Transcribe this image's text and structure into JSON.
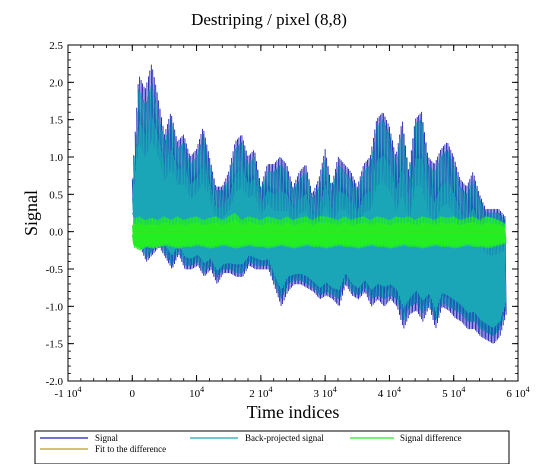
{
  "chart_data": {
    "type": "line",
    "title": "Destriping / pixel (8,8)",
    "xlabel": "Time indices",
    "ylabel": "Signal",
    "xlim": [
      -10000,
      60000
    ],
    "ylim": [
      -2.0,
      2.5
    ],
    "x_ticks": [
      {
        "value": -10000,
        "label": "-1 10",
        "exp": "4"
      },
      {
        "value": 0,
        "label": "0",
        "exp": ""
      },
      {
        "value": 10000,
        "label": "10",
        "exp": "4"
      },
      {
        "value": 20000,
        "label": "2 10",
        "exp": "4"
      },
      {
        "value": 30000,
        "label": "3 10",
        "exp": "4"
      },
      {
        "value": 40000,
        "label": "4 10",
        "exp": "4"
      },
      {
        "value": 50000,
        "label": "5 10",
        "exp": "4"
      },
      {
        "value": 60000,
        "label": "6 10",
        "exp": "4"
      }
    ],
    "y_ticks": [
      {
        "value": 2.5,
        "label": "2.5"
      },
      {
        "value": 2.0,
        "label": "2.0"
      },
      {
        "value": 1.5,
        "label": "1.5"
      },
      {
        "value": 1.0,
        "label": "1.0"
      },
      {
        "value": 0.5,
        "label": "0.5"
      },
      {
        "value": 0.0,
        "label": "0.0"
      },
      {
        "value": -0.5,
        "label": "-0.5"
      },
      {
        "value": -1.0,
        "label": "-1.0"
      },
      {
        "value": -1.5,
        "label": "-1.5"
      },
      {
        "value": -2.0,
        "label": "-2.0"
      }
    ],
    "grid": false,
    "legend_position": "bottom",
    "series": [
      {
        "name": "Signal",
        "color": "#1c1cb4",
        "x": [
          0,
          1000,
          2000,
          3000,
          4000,
          5000,
          6000,
          7000,
          8000,
          9000,
          10000,
          11000,
          12000,
          13000,
          14000,
          15000,
          16000,
          17000,
          18000,
          19000,
          20000,
          21000,
          22000,
          23000,
          24000,
          25000,
          26000,
          27000,
          28000,
          29000,
          30000,
          31000,
          32000,
          33000,
          34000,
          35000,
          36000,
          37000,
          38000,
          39000,
          40000,
          41000,
          42000,
          43000,
          44000,
          45000,
          46000,
          47000,
          48000,
          49000,
          50000,
          51000,
          52000,
          53000,
          54000,
          55000,
          56000,
          57000,
          58000
        ],
        "y": [
          0.7,
          2.1,
          1.9,
          2.25,
          1.8,
          1.3,
          1.6,
          1.2,
          1.3,
          1.0,
          1.1,
          1.4,
          1.0,
          0.6,
          0.6,
          0.8,
          1.2,
          1.3,
          1.0,
          1.1,
          0.6,
          0.9,
          0.9,
          1.0,
          0.9,
          0.6,
          0.8,
          0.9,
          0.5,
          0.7,
          1.1,
          0.6,
          1.0,
          0.9,
          0.8,
          0.6,
          0.9,
          1.0,
          1.5,
          1.6,
          1.4,
          1.0,
          1.5,
          0.8,
          1.5,
          1.6,
          1.0,
          0.9,
          1.1,
          1.2,
          1.0,
          0.7,
          0.6,
          0.8,
          0.5,
          0.3,
          0.3,
          0.3,
          0.2
        ],
        "y_low": [
          0.2,
          -0.2,
          -0.4,
          -0.3,
          -0.2,
          -0.35,
          -0.5,
          -0.3,
          -0.5,
          -0.5,
          -0.45,
          -0.6,
          -0.5,
          -0.7,
          -0.55,
          -0.55,
          -0.6,
          -0.6,
          -0.45,
          -0.5,
          -0.5,
          -0.5,
          -0.75,
          -1.0,
          -0.8,
          -0.7,
          -0.7,
          -0.75,
          -0.8,
          -0.9,
          -0.85,
          -0.9,
          -1.0,
          -0.7,
          -0.85,
          -0.9,
          -0.8,
          -1.0,
          -0.9,
          -1.0,
          -0.9,
          -1.0,
          -1.3,
          -1.1,
          -1.05,
          -1.2,
          -1.0,
          -1.3,
          -1.0,
          -1.05,
          -1.15,
          -1.2,
          -1.3,
          -1.3,
          -1.4,
          -1.45,
          -1.5,
          -1.4,
          -1.1
        ]
      },
      {
        "name": "Back-projected signal",
        "color": "#1aa6b6",
        "x": [
          0,
          1000,
          2000,
          3000,
          4000,
          5000,
          6000,
          7000,
          8000,
          9000,
          10000,
          11000,
          12000,
          13000,
          14000,
          15000,
          16000,
          17000,
          18000,
          19000,
          20000,
          21000,
          22000,
          23000,
          24000,
          25000,
          26000,
          27000,
          28000,
          29000,
          30000,
          31000,
          32000,
          33000,
          34000,
          35000,
          36000,
          37000,
          38000,
          39000,
          40000,
          41000,
          42000,
          43000,
          44000,
          45000,
          46000,
          47000,
          48000,
          49000,
          50000,
          51000,
          52000,
          53000,
          54000,
          55000,
          56000,
          57000,
          58000
        ],
        "y": [
          0.6,
          1.9,
          1.7,
          2.0,
          1.6,
          1.2,
          1.5,
          1.1,
          1.2,
          0.9,
          1.0,
          1.3,
          0.9,
          0.55,
          0.55,
          0.7,
          1.1,
          1.2,
          0.9,
          1.0,
          0.55,
          0.8,
          0.8,
          0.9,
          0.8,
          0.55,
          0.7,
          0.8,
          0.45,
          0.6,
          1.0,
          0.55,
          0.9,
          0.8,
          0.7,
          0.55,
          0.8,
          0.9,
          1.4,
          1.5,
          1.3,
          0.9,
          1.4,
          0.7,
          1.45,
          1.5,
          0.9,
          0.8,
          1.0,
          1.1,
          0.9,
          0.6,
          0.5,
          0.7,
          0.45,
          0.25,
          0.25,
          0.25,
          0.15
        ],
        "y_low": [
          0.1,
          -0.15,
          -0.35,
          -0.25,
          -0.15,
          -0.3,
          -0.45,
          -0.25,
          -0.45,
          -0.45,
          -0.4,
          -0.55,
          -0.45,
          -0.6,
          -0.5,
          -0.5,
          -0.55,
          -0.55,
          -0.4,
          -0.45,
          -0.45,
          -0.45,
          -0.7,
          -0.9,
          -0.7,
          -0.65,
          -0.65,
          -0.7,
          -0.75,
          -0.85,
          -0.8,
          -0.85,
          -0.9,
          -0.65,
          -0.8,
          -0.85,
          -0.75,
          -0.9,
          -0.85,
          -0.9,
          -0.85,
          -0.9,
          -1.2,
          -1.0,
          -0.95,
          -1.1,
          -0.95,
          -1.2,
          -0.95,
          -1.0,
          -1.05,
          -1.1,
          -1.2,
          -1.2,
          -1.3,
          -1.35,
          -1.4,
          -1.3,
          -1.0
        ]
      },
      {
        "name": "Signal difference",
        "color": "#22ee22",
        "x": [
          0,
          1000,
          2000,
          3000,
          4000,
          5000,
          6000,
          7000,
          8000,
          9000,
          10000,
          11000,
          12000,
          13000,
          14000,
          15000,
          16000,
          17000,
          18000,
          19000,
          20000,
          21000,
          22000,
          23000,
          24000,
          25000,
          26000,
          27000,
          28000,
          29000,
          30000,
          31000,
          32000,
          33000,
          34000,
          35000,
          36000,
          37000,
          38000,
          39000,
          40000,
          41000,
          42000,
          43000,
          44000,
          45000,
          46000,
          47000,
          48000,
          49000,
          50000,
          51000,
          52000,
          53000,
          54000,
          55000,
          56000,
          57000,
          58000
        ],
        "y": [
          0.15,
          0.2,
          0.15,
          0.18,
          0.15,
          0.2,
          0.15,
          0.2,
          0.15,
          0.18,
          0.2,
          0.15,
          0.18,
          0.2,
          0.15,
          0.2,
          0.25,
          0.15,
          0.2,
          0.18,
          0.15,
          0.2,
          0.18,
          0.15,
          0.2,
          0.15,
          0.18,
          0.2,
          0.15,
          0.2,
          0.2,
          0.18,
          0.15,
          0.2,
          0.15,
          0.18,
          0.2,
          0.15,
          0.2,
          0.18,
          0.15,
          0.2,
          0.18,
          0.2,
          0.15,
          0.2,
          0.18,
          0.15,
          0.2,
          0.18,
          0.2,
          0.15,
          0.18,
          0.2,
          0.15,
          0.2,
          0.18,
          0.15,
          0.1
        ],
        "y_low": [
          -0.2,
          -0.25,
          -0.2,
          -0.22,
          -0.2,
          -0.18,
          -0.2,
          -0.22,
          -0.2,
          -0.2,
          -0.18,
          -0.2,
          -0.22,
          -0.2,
          -0.18,
          -0.2,
          -0.22,
          -0.2,
          -0.18,
          -0.2,
          -0.2,
          -0.22,
          -0.2,
          -0.18,
          -0.2,
          -0.22,
          -0.2,
          -0.18,
          -0.2,
          -0.2,
          -0.22,
          -0.2,
          -0.18,
          -0.2,
          -0.2,
          -0.22,
          -0.2,
          -0.18,
          -0.2,
          -0.2,
          -0.22,
          -0.2,
          -0.18,
          -0.2,
          -0.2,
          -0.22,
          -0.2,
          -0.18,
          -0.2,
          -0.2,
          -0.22,
          -0.2,
          -0.18,
          -0.2,
          -0.2,
          -0.22,
          -0.2,
          -0.18,
          -0.15
        ]
      },
      {
        "name": "Fit to the difference",
        "color": "#b8a01c",
        "x": [
          0,
          58000
        ],
        "y": [
          0.0,
          0.0
        ]
      }
    ]
  }
}
